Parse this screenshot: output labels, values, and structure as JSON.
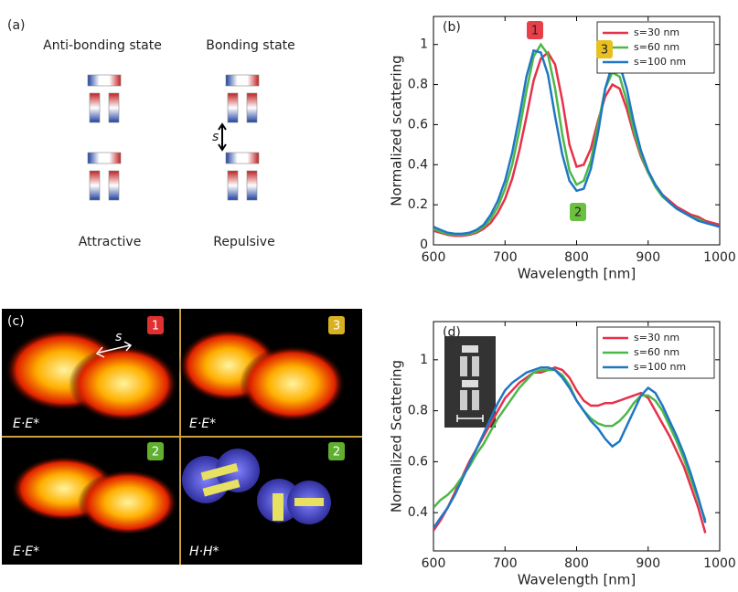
{
  "panel_a": {
    "label": "(a)",
    "left_title": "Anti-bonding state",
    "right_title": "Bonding state",
    "gap": "s",
    "left_caption": "Attractive",
    "right_caption": "Repulsive"
  },
  "panel_c": {
    "label": "(c)",
    "badges": [
      "1",
      "3",
      "2",
      "2"
    ],
    "gap": "s",
    "captions": [
      "E·E*",
      "E·E*",
      "E·E*",
      "H·H*"
    ]
  },
  "chart_data": [
    {
      "type": "line",
      "label": "(b)",
      "x_label": "Wavelength [nm]",
      "y_label": "Normalized scattering",
      "xlim": [
        600,
        1000
      ],
      "xticks": [
        600,
        700,
        800,
        900,
        1000
      ],
      "ylim": [
        0,
        1.14
      ],
      "yticks": [
        0,
        0.2,
        0.4,
        0.6,
        0.8,
        1
      ],
      "legend": "upper right",
      "grid": false,
      "annotations": [
        {
          "text": "1",
          "color": "#e8404a"
        },
        {
          "text": "3",
          "color": "#e8c020"
        },
        {
          "text": "2",
          "color": "#6cc040"
        }
      ],
      "x": [
        600,
        610,
        620,
        630,
        640,
        650,
        660,
        670,
        680,
        690,
        700,
        710,
        720,
        730,
        740,
        750,
        760,
        770,
        780,
        790,
        800,
        810,
        820,
        830,
        840,
        850,
        860,
        870,
        880,
        890,
        900,
        910,
        920,
        930,
        940,
        950,
        960,
        970,
        980,
        990,
        1000
      ],
      "series": [
        {
          "name": "s=30 nm",
          "color": "#e8304a",
          "values": [
            0.07,
            0.06,
            0.05,
            0.045,
            0.045,
            0.05,
            0.06,
            0.08,
            0.11,
            0.16,
            0.23,
            0.33,
            0.47,
            0.64,
            0.82,
            0.93,
            0.96,
            0.9,
            0.72,
            0.5,
            0.39,
            0.4,
            0.48,
            0.62,
            0.74,
            0.8,
            0.78,
            0.68,
            0.55,
            0.44,
            0.36,
            0.3,
            0.25,
            0.22,
            0.19,
            0.17,
            0.15,
            0.14,
            0.12,
            0.11,
            0.1
          ]
        },
        {
          "name": "s=60 nm",
          "color": "#4cb848",
          "values": [
            0.08,
            0.065,
            0.055,
            0.05,
            0.05,
            0.055,
            0.065,
            0.09,
            0.13,
            0.19,
            0.28,
            0.4,
            0.57,
            0.77,
            0.94,
            1.0,
            0.95,
            0.78,
            0.55,
            0.37,
            0.3,
            0.32,
            0.42,
            0.6,
            0.78,
            0.86,
            0.84,
            0.72,
            0.57,
            0.45,
            0.36,
            0.29,
            0.24,
            0.21,
            0.18,
            0.16,
            0.14,
            0.13,
            0.11,
            0.1,
            0.09
          ]
        },
        {
          "name": "s=100 nm",
          "color": "#1f77c4",
          "values": [
            0.09,
            0.075,
            0.06,
            0.055,
            0.055,
            0.06,
            0.075,
            0.1,
            0.15,
            0.22,
            0.32,
            0.46,
            0.64,
            0.84,
            0.97,
            0.96,
            0.85,
            0.64,
            0.45,
            0.32,
            0.27,
            0.28,
            0.38,
            0.56,
            0.78,
            0.9,
            0.9,
            0.78,
            0.61,
            0.47,
            0.37,
            0.3,
            0.25,
            0.21,
            0.18,
            0.16,
            0.14,
            0.12,
            0.11,
            0.1,
            0.09
          ]
        }
      ]
    },
    {
      "type": "line",
      "label": "(d)",
      "x_label": "Wavelength [nm]",
      "y_label": "Normalized Scattering",
      "xlim": [
        600,
        1000
      ],
      "xticks": [
        600,
        700,
        800,
        900,
        1000
      ],
      "ylim": [
        0.25,
        1.15
      ],
      "yticks": [
        0.4,
        0.6,
        0.8,
        1
      ],
      "legend": "upper right",
      "grid": false,
      "x": [
        600,
        610,
        620,
        630,
        640,
        650,
        660,
        670,
        680,
        690,
        700,
        710,
        720,
        730,
        740,
        750,
        760,
        770,
        780,
        790,
        800,
        810,
        820,
        830,
        840,
        850,
        860,
        870,
        880,
        890,
        900,
        910,
        920,
        930,
        940,
        950,
        960,
        970,
        980
      ],
      "series": [
        {
          "name": "s=30 nm",
          "color": "#e8304a",
          "values": [
            0.33,
            0.37,
            0.42,
            0.48,
            0.54,
            0.6,
            0.65,
            0.7,
            0.75,
            0.8,
            0.85,
            0.88,
            0.91,
            0.93,
            0.95,
            0.95,
            0.96,
            0.97,
            0.96,
            0.93,
            0.88,
            0.84,
            0.82,
            0.82,
            0.83,
            0.83,
            0.84,
            0.85,
            0.86,
            0.87,
            0.85,
            0.8,
            0.75,
            0.7,
            0.64,
            0.58,
            0.5,
            0.42,
            0.32
          ]
        },
        {
          "name": "s=60 nm",
          "color": "#4cb848",
          "values": [
            0.42,
            0.45,
            0.47,
            0.5,
            0.54,
            0.58,
            0.63,
            0.67,
            0.72,
            0.77,
            0.81,
            0.85,
            0.89,
            0.92,
            0.95,
            0.96,
            0.96,
            0.96,
            0.94,
            0.9,
            0.84,
            0.8,
            0.77,
            0.75,
            0.74,
            0.74,
            0.76,
            0.79,
            0.83,
            0.86,
            0.86,
            0.84,
            0.8,
            0.74,
            0.68,
            0.61,
            0.53,
            0.45,
            0.37
          ]
        },
        {
          "name": "s=100 nm",
          "color": "#1f77c4",
          "values": [
            0.34,
            0.38,
            0.42,
            0.47,
            0.53,
            0.59,
            0.65,
            0.71,
            0.77,
            0.83,
            0.88,
            0.91,
            0.93,
            0.95,
            0.96,
            0.97,
            0.97,
            0.96,
            0.93,
            0.89,
            0.84,
            0.8,
            0.76,
            0.73,
            0.69,
            0.66,
            0.68,
            0.74,
            0.8,
            0.86,
            0.89,
            0.87,
            0.82,
            0.76,
            0.7,
            0.63,
            0.55,
            0.46,
            0.36
          ]
        }
      ]
    }
  ]
}
